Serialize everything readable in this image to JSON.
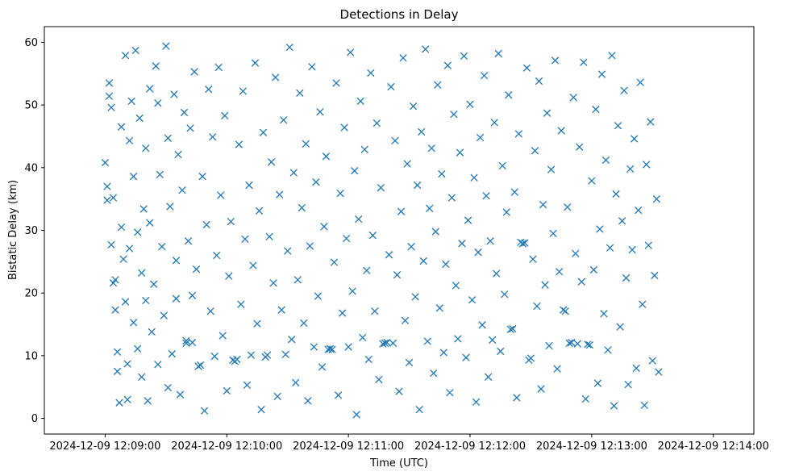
{
  "chart_data": {
    "type": "scatter",
    "title": "Detections in Delay",
    "xlabel": "Time (UTC)",
    "ylabel": "Bistatic Delay (km)",
    "marker": "x",
    "color": "#1f77b4",
    "grid": false,
    "xlim_seconds": [
      -30,
      320
    ],
    "ylim": [
      -2.5,
      62.5
    ],
    "x_ticks": [
      {
        "seconds": 0,
        "label": "2024-12-09 12:09:00"
      },
      {
        "seconds": 60,
        "label": "2024-12-09 12:10:00"
      },
      {
        "seconds": 120,
        "label": "2024-12-09 12:11:00"
      },
      {
        "seconds": 180,
        "label": "2024-12-09 12:12:00"
      },
      {
        "seconds": 240,
        "label": "2024-12-09 12:13:00"
      },
      {
        "seconds": 300,
        "label": "2024-12-09 12:14:00"
      }
    ],
    "y_ticks": [
      {
        "value": 0,
        "label": "0"
      },
      {
        "value": 10,
        "label": "10"
      },
      {
        "value": 20,
        "label": "20"
      },
      {
        "value": 30,
        "label": "30"
      },
      {
        "value": 40,
        "label": "40"
      },
      {
        "value": 50,
        "label": "50"
      },
      {
        "value": 60,
        "label": "60"
      }
    ],
    "x_start_time": "2024-12-09 12:08:57",
    "x_end_time": "2024-12-09 12:13:57",
    "series": [
      {
        "name": "Detections",
        "points": [
          [
            0,
            40.8
          ],
          [
            1,
            37.0
          ],
          [
            1,
            34.8
          ],
          [
            2,
            53.5
          ],
          [
            2,
            51.4
          ],
          [
            3,
            49.6
          ],
          [
            3,
            27.7
          ],
          [
            4,
            35.2
          ],
          [
            4,
            21.6
          ],
          [
            5,
            22.1
          ],
          [
            5,
            17.3
          ],
          [
            6,
            10.6
          ],
          [
            6,
            7.5
          ],
          [
            7,
            2.5
          ],
          [
            8,
            46.5
          ],
          [
            8,
            30.5
          ],
          [
            9,
            25.4
          ],
          [
            10,
            57.9
          ],
          [
            10,
            18.6
          ],
          [
            11,
            8.7
          ],
          [
            11,
            3.0
          ],
          [
            12,
            44.3
          ],
          [
            12,
            27.1
          ],
          [
            13,
            50.6
          ],
          [
            14,
            38.6
          ],
          [
            14,
            15.3
          ],
          [
            15,
            58.7
          ],
          [
            16,
            29.7
          ],
          [
            16,
            11.1
          ],
          [
            17,
            47.9
          ],
          [
            18,
            23.2
          ],
          [
            18,
            6.6
          ],
          [
            19,
            33.4
          ],
          [
            20,
            43.1
          ],
          [
            20,
            18.8
          ],
          [
            21,
            2.8
          ],
          [
            22,
            52.6
          ],
          [
            22,
            31.2
          ],
          [
            23,
            13.8
          ],
          [
            24,
            21.4
          ],
          [
            25,
            56.2
          ],
          [
            26,
            50.3
          ],
          [
            26,
            8.6
          ],
          [
            27,
            38.9
          ],
          [
            28,
            27.4
          ],
          [
            29,
            16.4
          ],
          [
            30,
            59.4
          ],
          [
            31,
            44.7
          ],
          [
            31,
            4.9
          ],
          [
            32,
            33.8
          ],
          [
            33,
            10.3
          ],
          [
            34,
            51.7
          ],
          [
            35,
            25.2
          ],
          [
            35,
            19.1
          ],
          [
            36,
            42.1
          ],
          [
            37,
            3.8
          ],
          [
            38,
            36.4
          ],
          [
            39,
            48.8
          ],
          [
            40,
            12.4
          ],
          [
            40,
            12.0
          ],
          [
            41,
            28.3
          ],
          [
            42,
            46.3
          ],
          [
            43,
            12.1
          ],
          [
            43,
            19.6
          ],
          [
            44,
            55.3
          ],
          [
            45,
            23.8
          ],
          [
            46,
            8.3
          ],
          [
            47,
            8.5
          ],
          [
            48,
            38.6
          ],
          [
            49,
            1.2
          ],
          [
            50,
            30.9
          ],
          [
            51,
            52.5
          ],
          [
            52,
            17.1
          ],
          [
            53,
            44.9
          ],
          [
            54,
            9.9
          ],
          [
            55,
            26.0
          ],
          [
            56,
            56.0
          ],
          [
            57,
            35.6
          ],
          [
            58,
            13.2
          ],
          [
            59,
            48.3
          ],
          [
            60,
            4.4
          ],
          [
            61,
            22.7
          ],
          [
            62,
            31.4
          ],
          [
            63,
            9.3
          ],
          [
            64,
            9.1
          ],
          [
            65,
            9.4
          ],
          [
            66,
            43.7
          ],
          [
            67,
            18.2
          ],
          [
            68,
            52.2
          ],
          [
            69,
            28.6
          ],
          [
            70,
            5.3
          ],
          [
            71,
            37.2
          ],
          [
            72,
            10.1
          ],
          [
            73,
            24.4
          ],
          [
            74,
            56.7
          ],
          [
            75,
            15.1
          ],
          [
            76,
            33.1
          ],
          [
            77,
            1.4
          ],
          [
            78,
            45.6
          ],
          [
            79,
            9.8
          ],
          [
            80,
            10.1
          ],
          [
            81,
            29.0
          ],
          [
            82,
            40.9
          ],
          [
            83,
            21.6
          ],
          [
            84,
            54.4
          ],
          [
            85,
            3.5
          ],
          [
            86,
            35.7
          ],
          [
            87,
            17.3
          ],
          [
            88,
            47.6
          ],
          [
            89,
            10.2
          ],
          [
            90,
            26.7
          ],
          [
            91,
            59.2
          ],
          [
            92,
            12.6
          ],
          [
            93,
            39.2
          ],
          [
            94,
            5.7
          ],
          [
            95,
            22.1
          ],
          [
            96,
            51.9
          ],
          [
            97,
            33.6
          ],
          [
            98,
            15.2
          ],
          [
            99,
            43.8
          ],
          [
            100,
            2.8
          ],
          [
            101,
            27.5
          ],
          [
            102,
            56.1
          ],
          [
            103,
            11.4
          ],
          [
            104,
            37.7
          ],
          [
            105,
            19.5
          ],
          [
            106,
            48.9
          ],
          [
            107,
            8.2
          ],
          [
            108,
            30.6
          ],
          [
            109,
            41.8
          ],
          [
            110,
            11.0
          ],
          [
            111,
            11.1
          ],
          [
            112,
            11.0
          ],
          [
            113,
            24.9
          ],
          [
            114,
            53.5
          ],
          [
            115,
            3.7
          ],
          [
            116,
            35.9
          ],
          [
            117,
            16.8
          ],
          [
            118,
            46.4
          ],
          [
            119,
            28.7
          ],
          [
            120,
            11.4
          ],
          [
            121,
            58.4
          ],
          [
            122,
            20.3
          ],
          [
            123,
            39.5
          ],
          [
            124,
            0.6
          ],
          [
            125,
            31.8
          ],
          [
            126,
            50.6
          ],
          [
            127,
            12.9
          ],
          [
            128,
            42.9
          ],
          [
            129,
            23.6
          ],
          [
            130,
            9.4
          ],
          [
            131,
            55.1
          ],
          [
            132,
            29.2
          ],
          [
            133,
            17.1
          ],
          [
            134,
            47.1
          ],
          [
            135,
            6.2
          ],
          [
            136,
            36.8
          ],
          [
            137,
            11.9
          ],
          [
            138,
            12.0
          ],
          [
            139,
            12.1
          ],
          [
            140,
            26.1
          ],
          [
            141,
            52.9
          ],
          [
            142,
            12.0
          ],
          [
            143,
            44.3
          ],
          [
            144,
            22.9
          ],
          [
            145,
            4.3
          ],
          [
            146,
            33.0
          ],
          [
            147,
            57.5
          ],
          [
            148,
            15.6
          ],
          [
            149,
            40.6
          ],
          [
            150,
            8.9
          ],
          [
            151,
            27.4
          ],
          [
            152,
            49.8
          ],
          [
            153,
            19.4
          ],
          [
            154,
            37.2
          ],
          [
            155,
            1.4
          ],
          [
            156,
            45.7
          ],
          [
            157,
            25.1
          ],
          [
            158,
            58.9
          ],
          [
            159,
            12.3
          ],
          [
            160,
            33.5
          ],
          [
            161,
            43.1
          ],
          [
            162,
            7.2
          ],
          [
            163,
            29.8
          ],
          [
            164,
            53.2
          ],
          [
            165,
            17.6
          ],
          [
            166,
            39.0
          ],
          [
            167,
            10.5
          ],
          [
            168,
            24.6
          ],
          [
            169,
            56.3
          ],
          [
            170,
            4.1
          ],
          [
            171,
            35.2
          ],
          [
            172,
            48.5
          ],
          [
            173,
            21.2
          ],
          [
            174,
            12.7
          ],
          [
            175,
            42.4
          ],
          [
            176,
            27.9
          ],
          [
            177,
            57.8
          ],
          [
            178,
            9.7
          ],
          [
            179,
            31.6
          ],
          [
            180,
            50.1
          ],
          [
            181,
            18.9
          ],
          [
            182,
            38.4
          ],
          [
            183,
            2.6
          ],
          [
            184,
            26.5
          ],
          [
            185,
            44.8
          ],
          [
            186,
            14.9
          ],
          [
            187,
            54.7
          ],
          [
            188,
            35.5
          ],
          [
            189,
            6.6
          ],
          [
            190,
            28.3
          ],
          [
            191,
            12.5
          ],
          [
            192,
            47.2
          ],
          [
            193,
            23.1
          ],
          [
            194,
            58.2
          ],
          [
            195,
            10.7
          ],
          [
            196,
            40.3
          ],
          [
            197,
            19.8
          ],
          [
            198,
            32.9
          ],
          [
            199,
            51.6
          ],
          [
            200,
            14.2
          ],
          [
            201,
            14.3
          ],
          [
            202,
            36.1
          ],
          [
            203,
            3.3
          ],
          [
            204,
            45.4
          ],
          [
            205,
            28.1
          ],
          [
            206,
            27.9
          ],
          [
            207,
            28.0
          ],
          [
            208,
            55.9
          ],
          [
            209,
            9.3
          ],
          [
            210,
            9.6
          ],
          [
            211,
            25.4
          ],
          [
            212,
            42.7
          ],
          [
            213,
            17.9
          ],
          [
            214,
            53.8
          ],
          [
            215,
            4.7
          ],
          [
            216,
            34.1
          ],
          [
            217,
            21.3
          ],
          [
            218,
            48.7
          ],
          [
            219,
            11.6
          ],
          [
            220,
            39.7
          ],
          [
            221,
            29.5
          ],
          [
            222,
            57.1
          ],
          [
            223,
            7.9
          ],
          [
            224,
            23.4
          ],
          [
            225,
            45.9
          ],
          [
            226,
            17.3
          ],
          [
            227,
            17.1
          ],
          [
            228,
            33.7
          ],
          [
            229,
            12.0
          ],
          [
            230,
            12.1
          ],
          [
            231,
            51.2
          ],
          [
            232,
            26.3
          ],
          [
            233,
            11.9
          ],
          [
            234,
            43.3
          ],
          [
            235,
            21.8
          ],
          [
            236,
            56.8
          ],
          [
            237,
            3.1
          ],
          [
            238,
            11.8
          ],
          [
            239,
            11.7
          ],
          [
            240,
            37.9
          ],
          [
            241,
            23.7
          ],
          [
            242,
            49.3
          ],
          [
            243,
            5.6
          ],
          [
            244,
            30.2
          ],
          [
            245,
            54.9
          ],
          [
            246,
            16.7
          ],
          [
            247,
            41.2
          ],
          [
            248,
            10.9
          ],
          [
            249,
            27.2
          ],
          [
            250,
            57.9
          ],
          [
            251,
            2.0
          ],
          [
            252,
            35.8
          ],
          [
            253,
            46.7
          ],
          [
            254,
            14.6
          ],
          [
            255,
            31.5
          ],
          [
            256,
            52.3
          ],
          [
            257,
            22.4
          ],
          [
            258,
            5.4
          ],
          [
            259,
            39.8
          ],
          [
            260,
            26.9
          ],
          [
            261,
            44.6
          ],
          [
            262,
            8.0
          ],
          [
            263,
            33.2
          ],
          [
            264,
            53.6
          ],
          [
            265,
            18.2
          ],
          [
            266,
            2.1
          ],
          [
            267,
            40.5
          ],
          [
            268,
            27.6
          ],
          [
            269,
            47.3
          ],
          [
            270,
            9.2
          ],
          [
            271,
            22.8
          ],
          [
            272,
            35.0
          ],
          [
            273,
            7.4
          ]
        ]
      }
    ]
  }
}
